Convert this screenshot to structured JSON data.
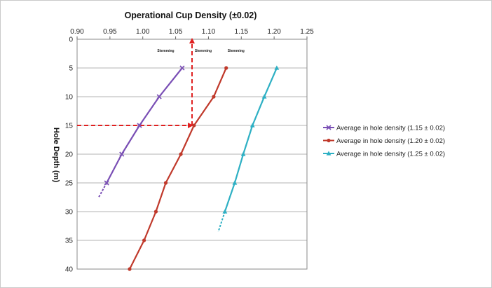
{
  "chart_data": {
    "type": "line",
    "title": "Operational Cup Density (±0.02)",
    "xlabel": "",
    "ylabel": "Hole Depth (m)",
    "xlim": [
      0.9,
      1.25
    ],
    "ylim": [
      0,
      40
    ],
    "y_inverted": true,
    "x_axis_position": "top",
    "x_ticks": [
      "0.90",
      "0.95",
      "1.00",
      "1.05",
      "1.10",
      "1.15",
      "1.20",
      "1.25"
    ],
    "y_ticks": [
      "0",
      "5",
      "10",
      "15",
      "20",
      "25",
      "30",
      "35",
      "40"
    ],
    "grid": "horizontal",
    "legend_position": "right",
    "annotations": [
      {
        "text": "Stemming",
        "x": 1.035,
        "y": 2.2
      },
      {
        "text": "Stemming",
        "x": 1.092,
        "y": 2.2
      },
      {
        "text": "Stemming",
        "x": 1.142,
        "y": 2.2
      }
    ],
    "reference_lines": [
      {
        "points": [
          [
            0.9,
            15
          ],
          [
            1.075,
            15
          ]
        ],
        "color": "#e02020",
        "style": "dashed"
      },
      {
        "points": [
          [
            1.075,
            15
          ],
          [
            1.075,
            0
          ]
        ],
        "color": "#e02020",
        "style": "dashed"
      }
    ],
    "series": [
      {
        "name": "Average in hole density (1.15 ± 0.02)",
        "color": "#7a4fb5",
        "marker": "x",
        "points": [
          [
            1.06,
            5
          ],
          [
            1.025,
            10
          ],
          [
            0.995,
            15
          ],
          [
            0.968,
            20
          ],
          [
            0.945,
            25
          ]
        ],
        "extension": [
          [
            0.945,
            25
          ],
          [
            0.933,
            27.5
          ]
        ]
      },
      {
        "name": "Average in hole density (1.20 ± 0.02)",
        "color": "#c0392b",
        "marker": "circle",
        "points": [
          [
            1.127,
            5
          ],
          [
            1.108,
            10
          ],
          [
            1.078,
            15
          ],
          [
            1.058,
            20
          ],
          [
            1.035,
            25
          ],
          [
            1.02,
            30
          ],
          [
            1.002,
            35
          ],
          [
            0.98,
            40
          ]
        ],
        "extension": []
      },
      {
        "name": "Average in hole density (1.25 ± 0.02)",
        "color": "#2eb0c4",
        "marker": "triangle",
        "points": [
          [
            1.204,
            5
          ],
          [
            1.185,
            10
          ],
          [
            1.167,
            15
          ],
          [
            1.153,
            20
          ],
          [
            1.14,
            25
          ],
          [
            1.125,
            30
          ]
        ],
        "extension": [
          [
            1.125,
            30
          ],
          [
            1.115,
            33.5
          ]
        ]
      }
    ]
  }
}
